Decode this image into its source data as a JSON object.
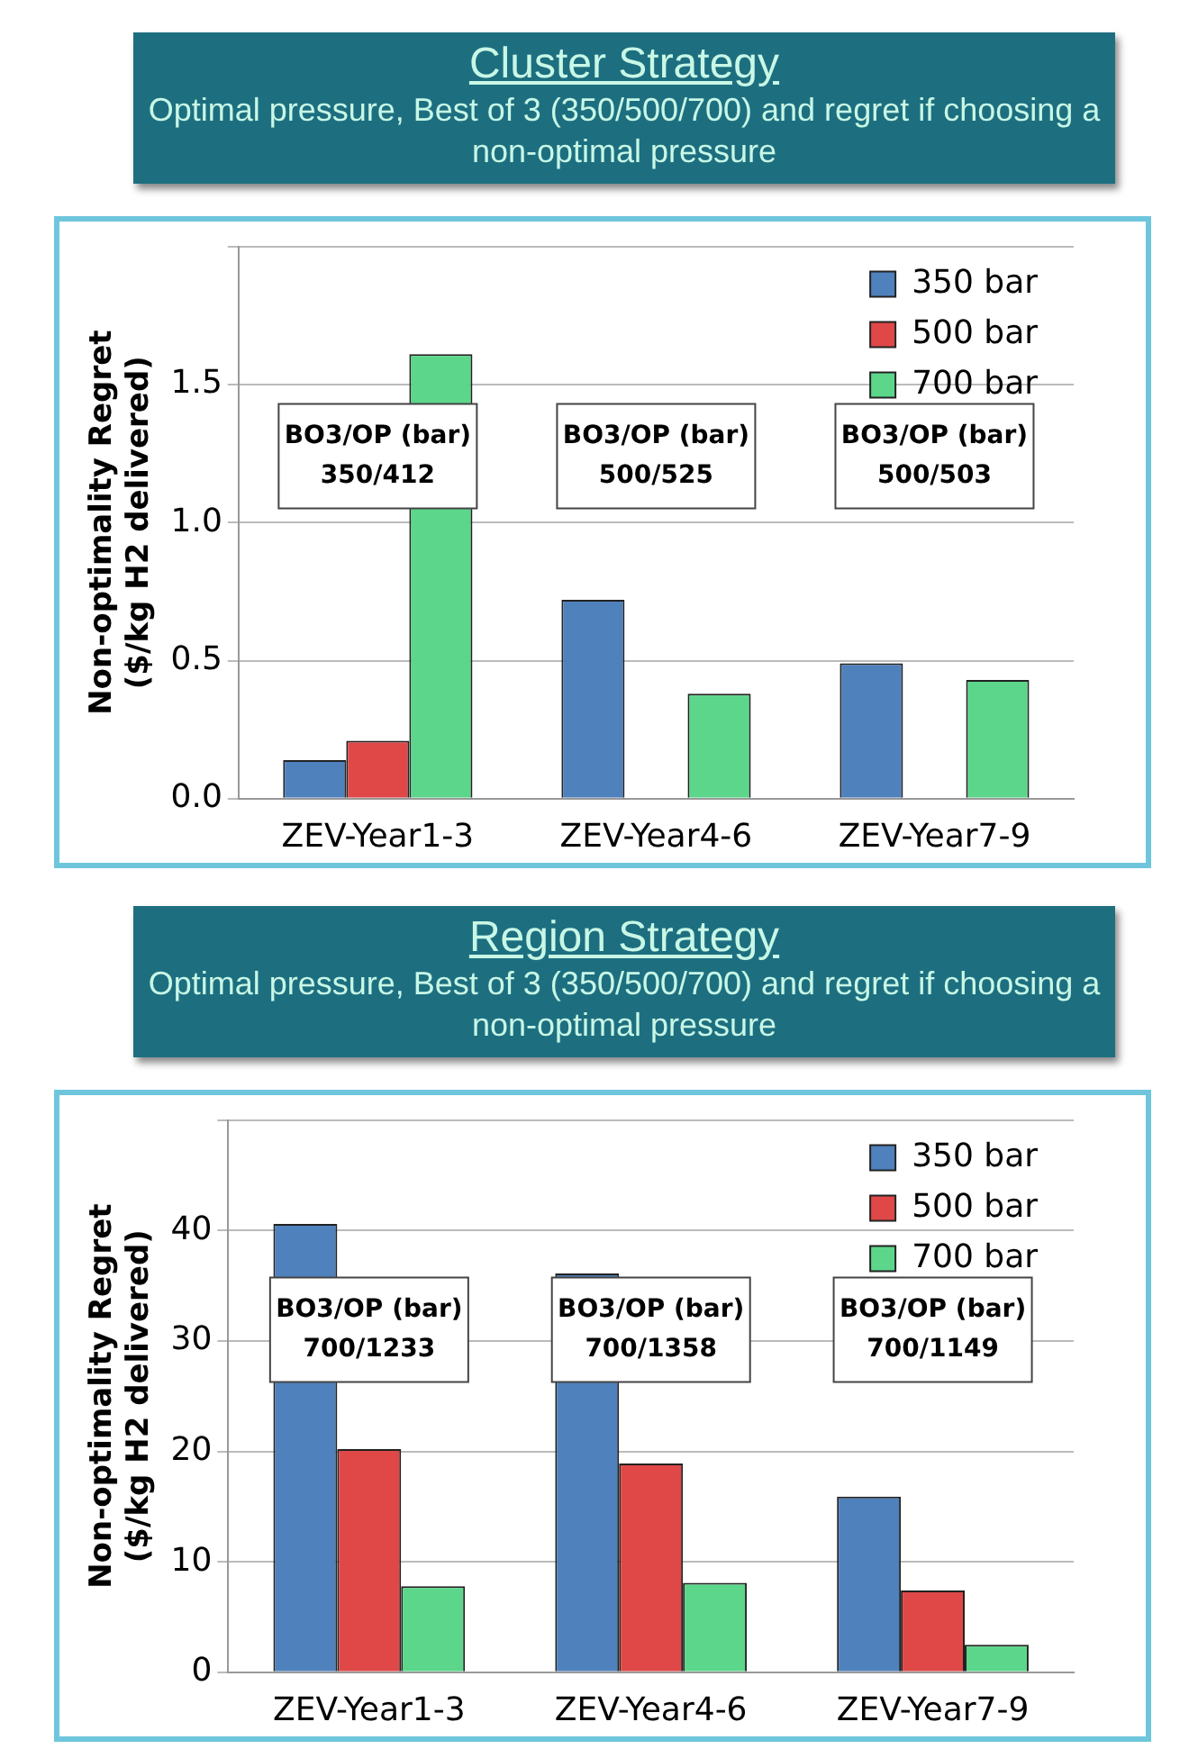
{
  "chart_data": [
    {
      "type": "bar",
      "title": "Cluster Strategy",
      "subtitle": "Optimal pressure, Best of 3 (350/500/700) and regret if choosing a non-optimal pressure",
      "ylabel": "Non-optimality Regret\n($/kg H2 delivered)",
      "categories": [
        "ZEV-Year1-3",
        "ZEV-Year4-6",
        "ZEV-Year7-9"
      ],
      "series": [
        {
          "name": "350 bar",
          "color": "#4f81bd",
          "values": [
            0.14,
            0.72,
            0.49
          ]
        },
        {
          "name": "500 bar",
          "color": "#e04848",
          "values": [
            0.21,
            0,
            0
          ]
        },
        {
          "name": "700 bar",
          "color": "#5cd68a",
          "values": [
            1.61,
            0.38,
            0.43
          ]
        }
      ],
      "ylim": [
        0,
        2
      ],
      "yticks": [
        {
          "value": 0,
          "label": "0.0"
        },
        0.5,
        {
          "value": 1,
          "label": "1.0"
        },
        1.5,
        {
          "value": 2,
          "label": null
        }
      ],
      "grid": "y",
      "legend": "top right",
      "annotations": [
        "BO3/OP (bar)\n350/412",
        "BO3/OP (bar)\n500/525",
        "BO3/OP (bar)\n500/503"
      ]
    },
    {
      "type": "bar",
      "title": "Region Strategy",
      "subtitle": "Optimal pressure, Best of 3 (350/500/700) and regret if choosing a non-optimal pressure",
      "ylabel": "Non-optimality Regret\n($/kg H2 delivered)",
      "categories": [
        "ZEV-Year1-3",
        "ZEV-Year4-6",
        "ZEV-Year7-9"
      ],
      "series": [
        {
          "name": "350 bar",
          "color": "#4f81bd",
          "values": [
            40.6,
            36.1,
            15.9
          ]
        },
        {
          "name": "500 bar",
          "color": "#e04848",
          "values": [
            20.2,
            18.9,
            7.4
          ]
        },
        {
          "name": "700 bar",
          "color": "#5cd68a",
          "values": [
            7.8,
            8.1,
            2.5
          ]
        }
      ],
      "ylim": [
        0,
        50
      ],
      "yticks": [
        0,
        10,
        20,
        30,
        40,
        {
          "value": 50,
          "label": null
        }
      ],
      "grid": "y",
      "legend": "top right",
      "annotations": [
        "BO3/OP (bar)\n700/1233",
        "BO3/OP (bar)\n700/1358",
        "BO3/OP (bar)\n700/1149"
      ]
    }
  ]
}
